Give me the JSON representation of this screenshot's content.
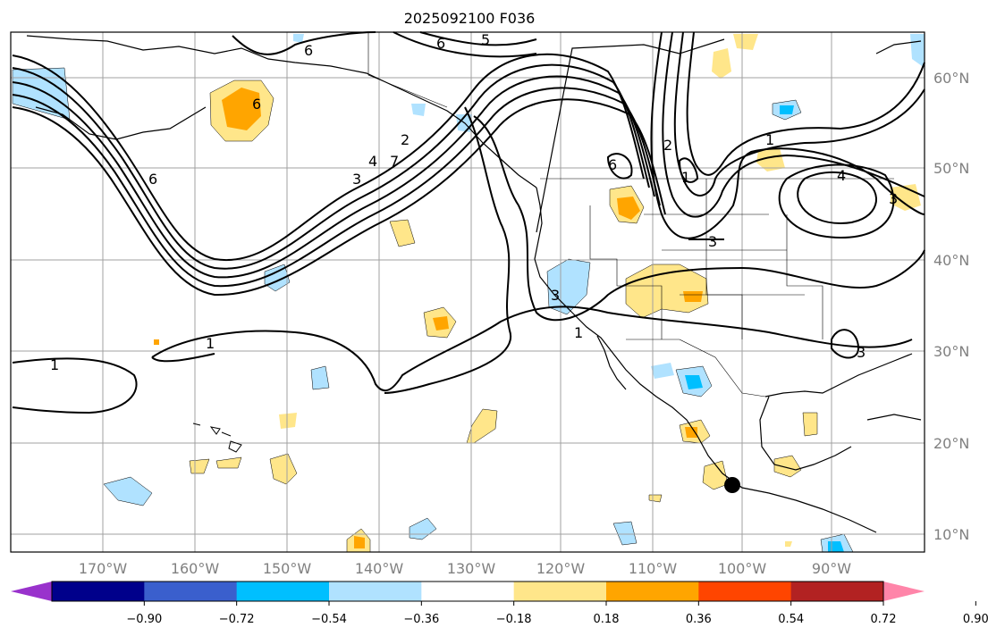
{
  "title": "2025092100 F036",
  "lon_labels": [
    "170°W",
    "160°W",
    "150°W",
    "140°W",
    "130°W",
    "120°W",
    "110°W",
    "100°W",
    "90°W"
  ],
  "lat_labels": [
    "60°N",
    "50°N",
    "40°N",
    "30°N",
    "20°N",
    "10°N"
  ],
  "colorbar": {
    "ticks": [
      "−0.90",
      "−0.72",
      "−0.54",
      "−0.36",
      "−0.18",
      "0.18",
      "0.36",
      "0.54",
      "0.72",
      "0.90"
    ],
    "colors": [
      "#9932cc",
      "#00008b",
      "#3a5fcd",
      "#00bfff",
      "#b0e2ff",
      "#ffffff",
      "#ffe68a",
      "#ffa500",
      "#ff4500",
      "#b22222",
      "#ff85a9"
    ]
  },
  "contour_labels": [
    "6",
    "5",
    "6",
    "6",
    "6",
    "4",
    "3",
    "7",
    "2",
    "6",
    "2",
    "1",
    "1",
    "4",
    "3",
    "3",
    "3",
    "1",
    "1",
    "1",
    "3"
  ],
  "colors": {
    "frame": "#000000",
    "grid": "#a0a0a0",
    "axis_text": "#808080"
  },
  "chart_data": {
    "type": "map",
    "title": "2025092100 F036",
    "lon_range": [
      -180,
      -80
    ],
    "lat_range": [
      8,
      65
    ],
    "lon_ticks": [
      -170,
      -160,
      -150,
      -140,
      -130,
      -120,
      -110,
      -100,
      -90
    ],
    "lat_ticks": [
      60,
      50,
      40,
      30,
      20,
      10
    ],
    "colorbar_levels": [
      -0.9,
      -0.72,
      -0.54,
      -0.36,
      -0.18,
      0.18,
      0.36,
      0.54,
      0.72,
      0.9
    ]
  }
}
